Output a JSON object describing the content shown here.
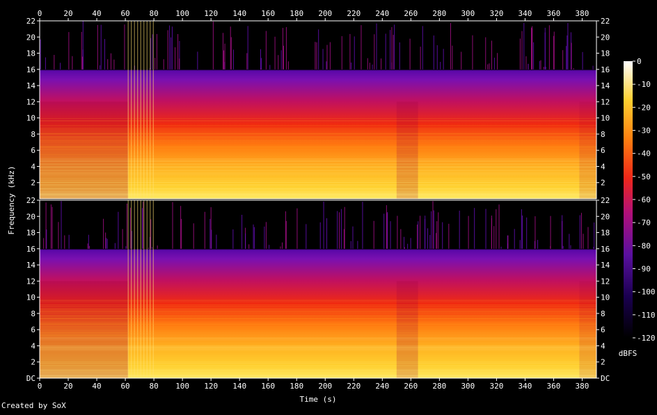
{
  "chart_data": {
    "type": "heatmap",
    "title": "",
    "xlabel": "Time (s)",
    "ylabel": "Frequency (kHz)",
    "colorbar_label": "dBFS",
    "xlim": [
      0,
      390
    ],
    "ylim": [
      0,
      22
    ],
    "x_ticks": [
      "0",
      "20",
      "40",
      "60",
      "80",
      "100",
      "120",
      "140",
      "160",
      "180",
      "200",
      "220",
      "240",
      "260",
      "280",
      "300",
      "320",
      "340",
      "360",
      "380"
    ],
    "y_ticks_top_channel": [
      "2",
      "4",
      "6",
      "8",
      "10",
      "12",
      "14",
      "16",
      "18",
      "20",
      "22"
    ],
    "y_ticks_bottom_channel": [
      "DC",
      "2",
      "4",
      "6",
      "8",
      "10",
      "12",
      "14",
      "16",
      "18",
      "20",
      "22"
    ],
    "colorbar_ticks": [
      "0",
      "-10",
      "-20",
      "-30",
      "-40",
      "-50",
      "-60",
      "-70",
      "-80",
      "-90",
      "-100",
      "-110",
      "-120"
    ],
    "colorbar_range_dbfs": [
      -120,
      0
    ],
    "channels": 2,
    "lowpass_cutoff_khz": 16,
    "notes_visible_segments": [
      {
        "t_start": 0,
        "t_end": 62,
        "level": "quieter intro"
      },
      {
        "t_start": 62,
        "t_end": 80,
        "level": "transient bursts"
      },
      {
        "t_start": 80,
        "t_end": 250,
        "level": "loud"
      },
      {
        "t_start": 250,
        "t_end": 265,
        "level": "dip"
      },
      {
        "t_start": 265,
        "t_end": 378,
        "level": "loud"
      },
      {
        "t_start": 378,
        "t_end": 390,
        "level": "fade"
      }
    ]
  },
  "credit": "Created by SoX"
}
